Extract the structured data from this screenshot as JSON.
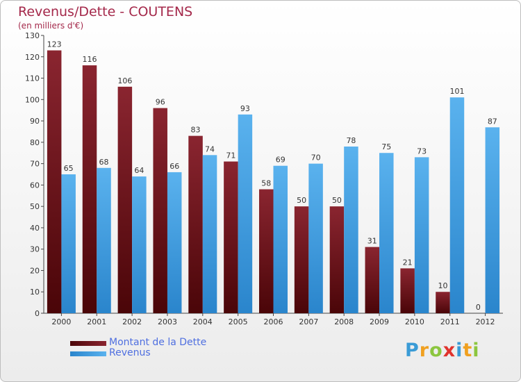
{
  "header": {
    "title": "Revenus/Dette - COUTENS",
    "subtitle": "(en milliers d'€)"
  },
  "legend": {
    "debt_label": "Montant de la Dette",
    "revenue_label": "Revenus"
  },
  "logo": {
    "text": "Proxiti",
    "letters": [
      {
        "char": "P",
        "color": "#3a9bd6"
      },
      {
        "char": "r",
        "color": "#f0a020"
      },
      {
        "char": "o",
        "color": "#8cc63f"
      },
      {
        "char": "x",
        "color": "#e0332d"
      },
      {
        "char": "i",
        "color": "#3a9bd6"
      },
      {
        "char": "t",
        "color": "#f0a020"
      },
      {
        "char": "i",
        "color": "#8cc63f"
      }
    ]
  },
  "colors": {
    "debt": "#7a1518",
    "revenue": "#3a9be0",
    "title": "#a4284a",
    "legend_text": "#4f6fe0"
  },
  "chart_data": {
    "type": "bar",
    "title": "Revenus/Dette - COUTENS",
    "subtitle": "(en milliers d'€)",
    "xlabel": "",
    "ylabel": "",
    "categories": [
      "2000",
      "2001",
      "2002",
      "2003",
      "2004",
      "2005",
      "2006",
      "2007",
      "2008",
      "2009",
      "2010",
      "2011",
      "2012"
    ],
    "series": [
      {
        "name": "Montant de la Dette",
        "color": "#7a1518",
        "values": [
          123,
          116,
          106,
          96,
          83,
          71,
          58,
          50,
          50,
          31,
          21,
          10,
          0
        ]
      },
      {
        "name": "Revenus",
        "color": "#3a9be0",
        "values": [
          65,
          68,
          64,
          66,
          74,
          93,
          69,
          70,
          78,
          75,
          73,
          101,
          87
        ]
      }
    ],
    "ylim": [
      0,
      130
    ],
    "yticks": [
      0,
      10,
      20,
      30,
      40,
      50,
      60,
      70,
      80,
      90,
      100,
      110,
      120,
      130
    ],
    "grid": false,
    "legend_position": "bottom-left"
  }
}
